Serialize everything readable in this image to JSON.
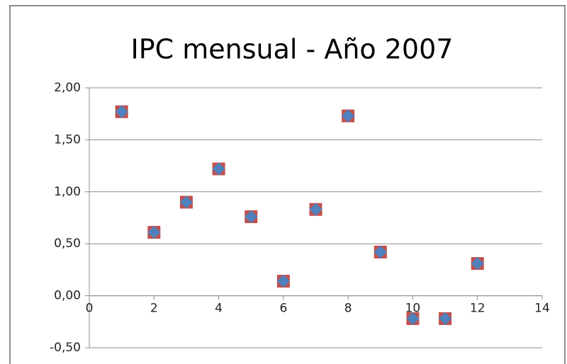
{
  "chart_data": {
    "type": "scatter",
    "title": "IPC mensual - Año 2007",
    "x": [
      1,
      2,
      3,
      4,
      5,
      6,
      7,
      8,
      9,
      10,
      11,
      12
    ],
    "series": [
      {
        "color": "#c0504d",
        "marker": "square",
        "values": [
          1.77,
          0.61,
          0.9,
          1.22,
          0.76,
          0.14,
          0.83,
          1.73,
          0.42,
          -0.22,
          -0.22,
          0.31
        ]
      },
      {
        "color": "#4f81bd",
        "marker": "diamond",
        "values": [
          1.77,
          0.61,
          0.9,
          1.22,
          0.76,
          0.14,
          0.83,
          1.73,
          0.42,
          -0.22,
          -0.22,
          0.31
        ]
      }
    ],
    "xlim": [
      0,
      14
    ],
    "xticks": [
      0,
      2,
      4,
      6,
      8,
      10,
      12,
      14
    ],
    "ylim": [
      -0.5,
      2
    ],
    "yticks": [
      {
        "value": -0.5,
        "label": "-0,50"
      },
      {
        "value": 0,
        "label": "0,00"
      },
      {
        "value": 0.5,
        "label": "0,50"
      },
      {
        "value": 1,
        "label": "1,00"
      },
      {
        "value": 1.5,
        "label": "1,50"
      },
      {
        "value": 2,
        "label": "2,00"
      }
    ],
    "grid": true
  }
}
